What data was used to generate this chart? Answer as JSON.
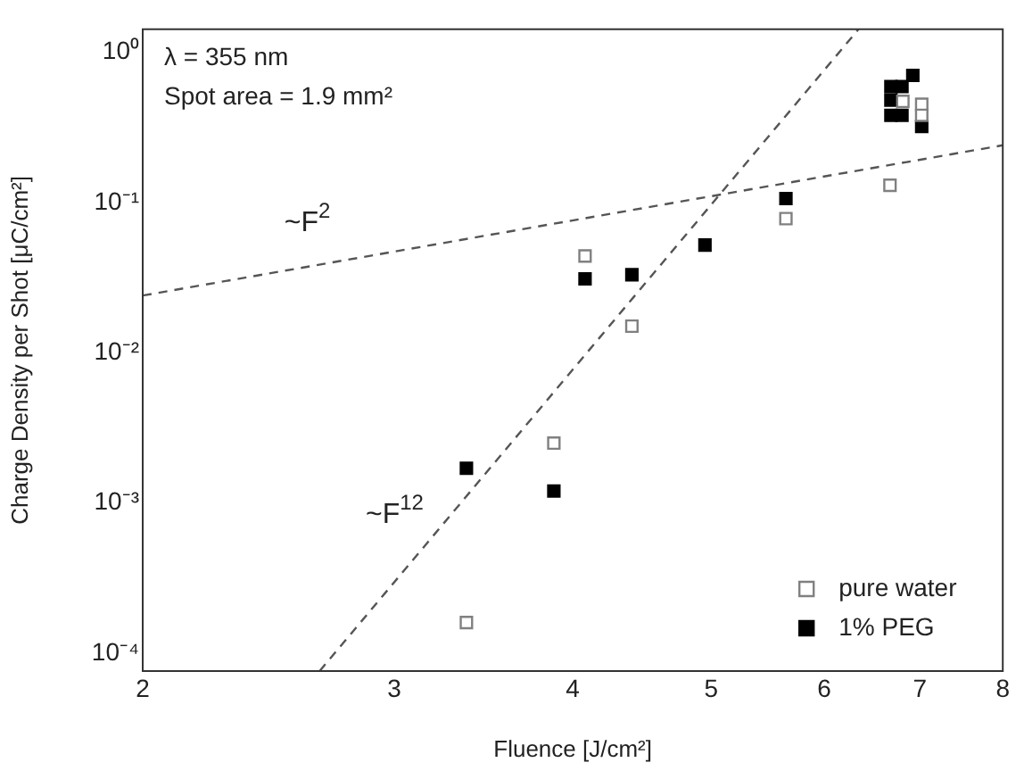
{
  "chart_data": {
    "type": "scatter",
    "xlabel": "Fluence [J/cm²]",
    "ylabel": "Charge Density per Shot [μC/cm²]",
    "log": "xy",
    "grid": false,
    "legend": "bottom right",
    "marker": "square",
    "xlim": [
      2,
      8
    ],
    "xticks": [
      2,
      3,
      4,
      5,
      6,
      7,
      8
    ],
    "ylim": [
      7.6e-05,
      1.42
    ],
    "yticks": [
      {
        "value": 0.0001,
        "label": "10⁻⁴"
      },
      {
        "value": 0.001,
        "label": "10⁻³"
      },
      {
        "value": 0.01,
        "label": "10⁻²"
      },
      {
        "value": 0.1,
        "label": "10⁻¹"
      },
      {
        "value": 1,
        "label": "10⁰"
      }
    ],
    "series": [
      {
        "name": "pure water",
        "color": "#808080",
        "x": [
          3.37,
          3.88,
          4.08,
          4.4,
          5.64,
          6.67,
          6.81,
          7.02,
          7.02
        ],
        "values": [
          0.00016,
          0.0025,
          0.044,
          0.015,
          0.078,
          0.13,
          0.47,
          0.45,
          0.38
        ]
      },
      {
        "name": "1% PEG",
        "color": "#000000",
        "x": [
          3.37,
          3.88,
          4.08,
          4.4,
          4.95,
          5.64,
          6.68,
          6.8,
          6.92,
          6.68,
          6.68,
          6.8,
          7.02
        ],
        "values": [
          0.0017,
          0.0012,
          0.031,
          0.033,
          0.052,
          0.106,
          0.59,
          0.59,
          0.7,
          0.48,
          0.38,
          0.38,
          0.32
        ]
      },
      {
        "type": "line",
        "name": "~F$^{2}$",
        "color": "#555555",
        "line_style": "dashed",
        "marker": "none",
        "x": [
          2,
          8
        ],
        "values": [
          0.024,
          0.24
        ]
      },
      {
        "type": "line",
        "name": "~F$^{12}$",
        "color": "#555555",
        "line_style": "dashed",
        "marker": "none",
        "x": [
          2.66,
          6.34
        ],
        "values": [
          7.6e-05,
          1.42
        ]
      }
    ],
    "annotations": [
      "λ = 355 nm",
      "Spot area = 1.9 mm²"
    ]
  }
}
